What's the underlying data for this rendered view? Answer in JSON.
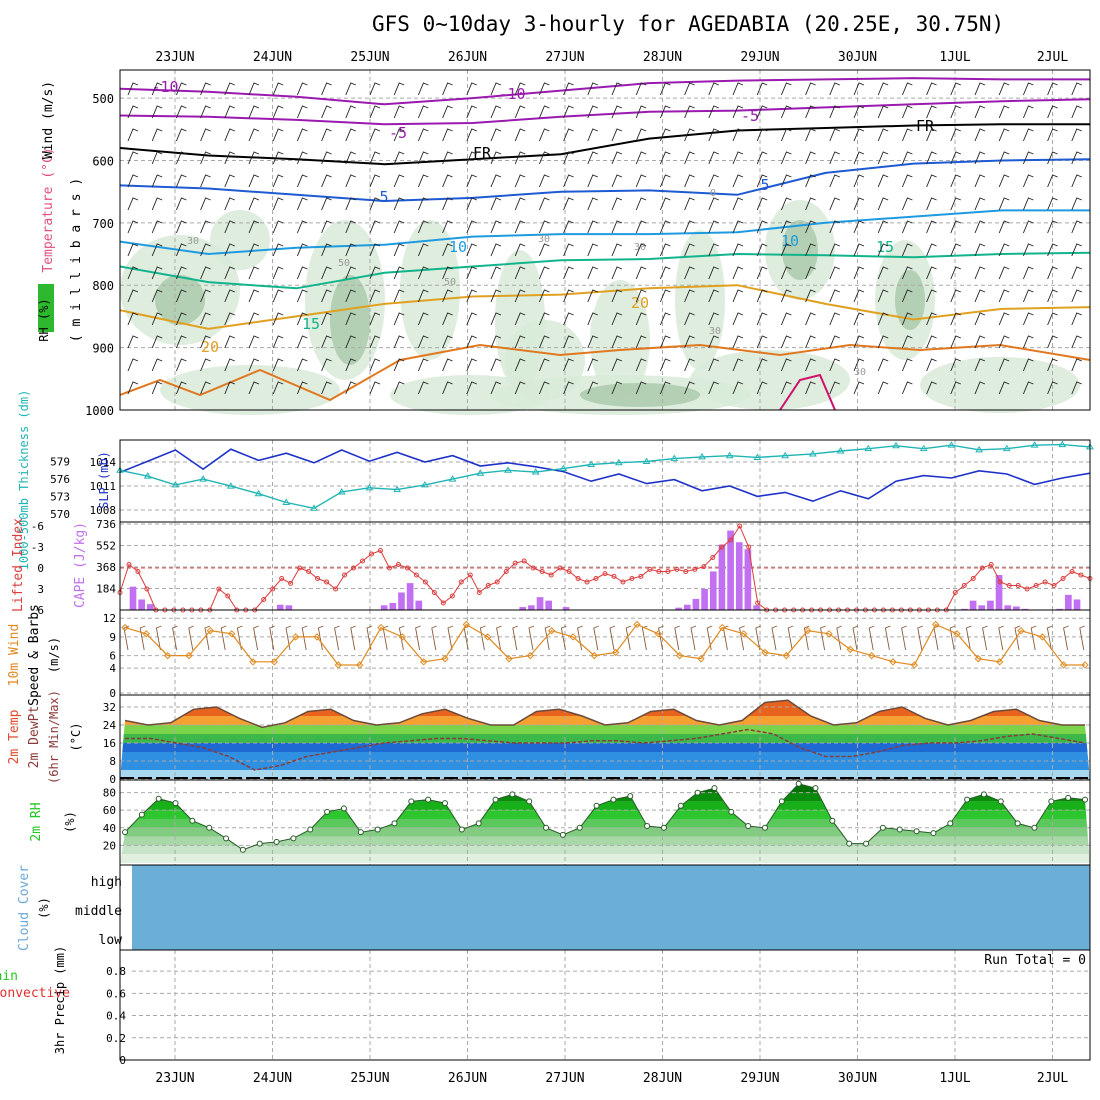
{
  "title": "GFS 0~10day 3-hourly for AGEDABIA (20.25E, 30.75N)",
  "dates": [
    "23JUN",
    "24JUN",
    "25JUN",
    "26JUN",
    "27JUN",
    "28JUN",
    "29JUN",
    "30JUN",
    "1JUL",
    "2JUL"
  ],
  "colors": {
    "grid": "#aaaaaa",
    "slp": "#1e32c8",
    "thick": "#20b4b4",
    "lifted": "#dc3c3c",
    "cape": "#c070f0",
    "wind": "#e08a20",
    "dew": "#8b3a3a",
    "rh": "#22c822",
    "cloud": "#6baed6"
  },
  "panels": {
    "upper": {
      "ylabels": [
        "Temperature (°C)",
        "Wind (m/s)"
      ],
      "rh_label": "RH (%)",
      "axis_label": "( m i l l i b a r s )",
      "levels": [
        500,
        600,
        700,
        800,
        900,
        1000
      ],
      "contour_labels": [
        "-10",
        "-10",
        "-5",
        "-5",
        "FR",
        "FR",
        "5",
        "5",
        "10",
        "10",
        "15",
        "15",
        "20",
        "20",
        "30",
        "50",
        "30",
        "30",
        "50",
        "30",
        "30",
        "0"
      ],
      "chart_data": {
        "type": "heatmap",
        "title": "",
        "isotherms": [
          {
            "name": "-10",
            "pressure": [
              485,
              490,
              498,
              510,
              500,
              488,
              476,
              472,
              470,
              468,
              470,
              470
            ]
          },
          {
            "name": "-5",
            "pressure": [
              528,
              530,
              535,
              542,
              540,
              530,
              522,
              520,
              515,
              510,
              505,
              502
            ]
          },
          {
            "name": "FR",
            "pressure": [
              580,
              592,
              598,
              606,
              598,
              590,
              565,
              552,
              548,
              544,
              542,
              542
            ]
          },
          {
            "name": "5",
            "pressure": [
              640,
              645,
              655,
              665,
              660,
              650,
              648,
              655,
              620,
              605,
              600,
              598
            ]
          },
          {
            "name": "10",
            "pressure": [
              730,
              750,
              740,
              735,
              722,
              718,
              718,
              715,
              700,
              690,
              680,
              680
            ]
          },
          {
            "name": "15",
            "pressure": [
              770,
              795,
              805,
              780,
              770,
              760,
              758,
              750,
              752,
              755,
              750,
              748
            ]
          },
          {
            "name": "20",
            "pressure": [
              840,
              870,
              850,
              830,
              818,
              815,
              805,
              800,
              830,
              855,
              838,
              835
            ]
          }
        ]
      }
    },
    "slp": {
      "ylabel_thick": "1000-500mb Thickness (dm)",
      "ylabel_slp": "SLP (mb)",
      "thick_ticks": [
        579,
        576,
        573,
        570
      ],
      "slp_ticks": [
        1014,
        1011,
        1008
      ],
      "chart_data": {
        "type": "line",
        "series": [
          {
            "name": "SLP (mb)",
            "values": [
              1012.7,
              1014.1,
              1015.5,
              1013.1,
              1015.6,
              1014.2,
              1015.1,
              1013.9,
              1015.5,
              1014.1,
              1015.2,
              1014.0,
              1014.8,
              1013.5,
              1013.9,
              1013.4,
              1012.8,
              1011.6,
              1012.5,
              1011.3,
              1011.8,
              1010.4,
              1011.0,
              1009.7,
              1010.2,
              1009.1,
              1010.4,
              1009.4,
              1011.6,
              1012.3,
              1012.0,
              1012.9,
              1012.5,
              1011.2,
              1012.0,
              1012.6
            ]
          },
          {
            "name": "1000-500mb Thickness (dm)",
            "values": [
              577.5,
              576.5,
              575.0,
              576.0,
              574.8,
              573.5,
              572.0,
              571.0,
              573.8,
              574.5,
              574.2,
              575.0,
              576.0,
              577.0,
              577.5,
              577.2,
              577.8,
              578.5,
              578.8,
              579.0,
              579.5,
              579.8,
              580.0,
              579.7,
              580.0,
              580.3,
              580.8,
              581.2,
              581.7,
              581.2,
              581.8,
              581.0,
              581.2,
              581.8,
              581.9,
              581.5
            ]
          }
        ]
      }
    },
    "cape": {
      "ylabel_li": "Lifted Index",
      "ylabel_cape": "CAPE (J/kg)",
      "li_ticks": [
        "-6",
        "-3",
        "0",
        "3",
        "6"
      ],
      "cape_ticks": [
        "736",
        "552",
        "368",
        "184"
      ],
      "chart_data": {
        "type": "bar",
        "series": [
          {
            "name": "CAPE (J/kg)",
            "values": [
              0,
              200,
              90,
              50,
              0,
              0,
              0,
              0,
              0,
              0,
              0,
              0,
              0,
              0,
              0,
              0,
              0,
              0,
              45,
              40,
              0,
              0,
              0,
              0,
              0,
              0,
              0,
              0,
              0,
              0,
              40,
              60,
              150,
              230,
              80,
              0,
              0,
              0,
              0,
              0,
              0,
              0,
              0,
              0,
              0,
              0,
              25,
              40,
              110,
              80,
              0,
              25,
              0,
              0,
              0,
              0,
              0,
              0,
              0,
              0,
              0,
              0,
              0,
              0,
              20,
              45,
              95,
              180,
              330,
              560,
              680,
              580,
              520,
              40,
              0,
              0,
              0,
              0,
              0,
              0,
              0,
              0,
              0,
              0,
              0,
              0,
              0,
              0,
              0,
              0,
              0,
              0,
              0,
              0,
              0,
              0,
              0,
              10,
              80,
              40,
              80,
              300,
              40,
              30,
              10,
              0,
              0,
              0,
              10,
              130,
              90,
              0
            ]
          },
          {
            "name": "Lifted Index",
            "values": [
              3.5,
              -0.5,
              0.5,
              3,
              6,
              6,
              6,
              6,
              6,
              6,
              6,
              3,
              4,
              6,
              6,
              6,
              4.5,
              3,
              1.5,
              2.2,
              0,
              0.5,
              1.5,
              2,
              3,
              1,
              0,
              -1,
              -2,
              -2.5,
              0,
              -0.5,
              0,
              1,
              2,
              3.5,
              5,
              4,
              2,
              1,
              3.5,
              2.5,
              2,
              0.5,
              -0.7,
              -1,
              0,
              0.5,
              1,
              0,
              0.5,
              1.5,
              2,
              1.5,
              0.8,
              1.2,
              2,
              1.5,
              1.2,
              0.2,
              0.5,
              0.5,
              0.2,
              0.5,
              0.2,
              -0.2,
              -1.5,
              -3,
              -4,
              -6,
              -3,
              5,
              6,
              6,
              6,
              6,
              6,
              6,
              6,
              6,
              6,
              6,
              6,
              6,
              6,
              6,
              6,
              6,
              6,
              6,
              6,
              6,
              6,
              3.5,
              2.5,
              1.5,
              0,
              -0.5,
              2,
              2.5,
              2.5,
              3,
              2.5,
              2,
              2.5,
              1.5,
              0.5,
              1,
              1.5
            ]
          }
        ]
      }
    },
    "wind10": {
      "ylabel_main": "10m Wind",
      "ylabel_sub": "Speed & Barbs",
      "unit": "(m/s)",
      "ticks": [
        "12",
        "9",
        "6",
        "4",
        "0"
      ],
      "chart_data": {
        "type": "line",
        "series": [
          {
            "name": "10m Wind Speed",
            "values": [
              10.5,
              9.5,
              6.0,
              6.0,
              10.0,
              9.5,
              5.0,
              5.0,
              9.0,
              9.0,
              4.5,
              4.5,
              10.5,
              9.0,
              5.0,
              5.5,
              11.0,
              9.0,
              5.5,
              6.0,
              10.0,
              9.0,
              6.0,
              6.5,
              11.0,
              9.5,
              6.0,
              5.5,
              10.5,
              9.5,
              6.5,
              6.0,
              10.0,
              9.5,
              7.0,
              6.0,
              5.0,
              4.5,
              11.0,
              9.5,
              5.5,
              5.0,
              10.0,
              9.0,
              4.5,
              4.5
            ]
          }
        ]
      }
    },
    "temp2m": {
      "ylabel_1": "2m Temp",
      "ylabel_2": "2m DewPt",
      "ylabel_3": "(6hr Min/Max)",
      "unit": "(°C)",
      "ticks": [
        "32",
        "24",
        "16",
        "8",
        "0"
      ],
      "chart_data": {
        "type": "area",
        "series": [
          {
            "name": "2m Temp",
            "values": [
              26,
              24,
              25,
              31,
              32,
              27,
              23,
              25,
              30,
              31,
              26,
              24,
              25,
              29,
              31,
              27,
              24,
              24,
              30,
              31,
              28,
              24,
              25,
              30,
              31,
              26,
              24,
              26,
              34,
              35,
              28,
              24,
              25,
              30,
              32,
              27,
              24,
              26,
              30,
              31,
              26,
              24,
              24
            ]
          },
          {
            "name": "2m DewPt",
            "values": [
              18,
              18,
              16,
              14,
              10,
              4,
              6,
              10,
              12,
              14,
              16,
              17,
              18,
              18,
              17,
              16,
              16,
              16,
              17,
              17,
              16,
              17,
              18,
              20,
              22,
              20,
              14,
              10,
              10,
              12,
              15,
              16,
              16,
              17,
              19,
              20,
              18,
              16
            ]
          }
        ]
      }
    },
    "rh2m": {
      "ylabel": "2m RH",
      "unit": "(%)",
      "ticks": [
        "80",
        "60",
        "40",
        "20"
      ],
      "chart_data": {
        "type": "area",
        "series": [
          {
            "name": "2m RH",
            "values": [
              35,
              55,
              73,
              68,
              48,
              40,
              28,
              15,
              22,
              24,
              28,
              38,
              58,
              62,
              35,
              38,
              45,
              70,
              72,
              68,
              38,
              45,
              72,
              78,
              70,
              40,
              32,
              40,
              65,
              72,
              76,
              42,
              40,
              65,
              80,
              85,
              58,
              42,
              40,
              70,
              90,
              85,
              48,
              22,
              22,
              40,
              38,
              36,
              34,
              45,
              72,
              78,
              70,
              45,
              40,
              70,
              74,
              72
            ]
          }
        ]
      }
    },
    "cloud": {
      "ylabel_1": "Cloud Cover",
      "ylabel_2": "(%)",
      "levels": [
        "high",
        "middle",
        "low"
      ]
    },
    "precip": {
      "ylabel_1": "Total / Rain",
      "ylabel_2": "Convective",
      "ylabel_3": "3hr Precip (mm)",
      "run_total": "Run Total = 0",
      "ticks": [
        "0.8",
        "0.6",
        "0.4",
        "0.2",
        "0"
      ],
      "chart_data": {
        "type": "bar",
        "ylim": [
          0,
          0.9
        ],
        "series": [
          {
            "name": "3hr Precip (mm)",
            "values": [
              0,
              0,
              0,
              0,
              0,
              0,
              0,
              0,
              0,
              0
            ]
          }
        ]
      }
    }
  }
}
